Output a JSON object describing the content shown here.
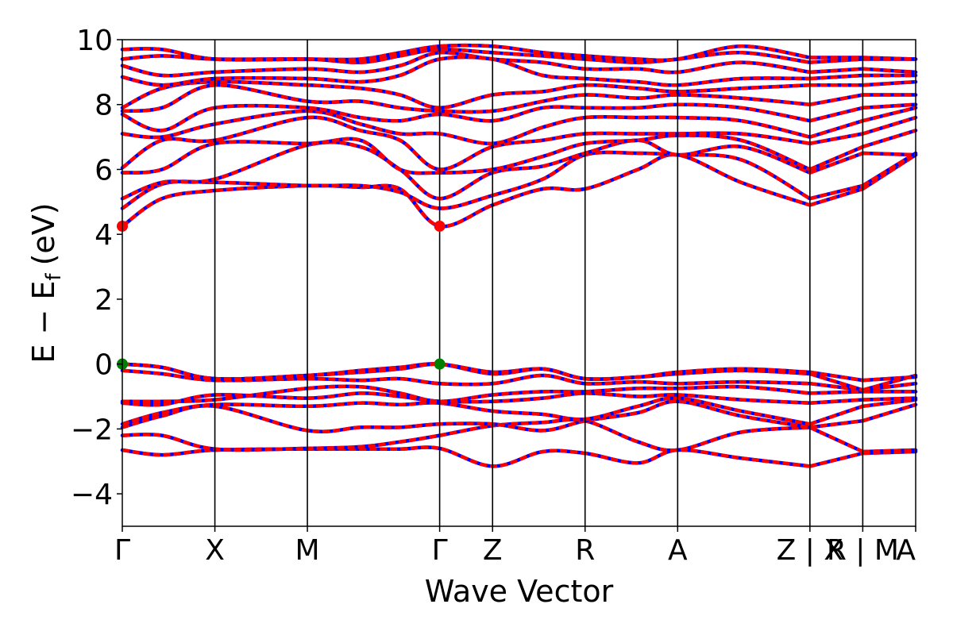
{
  "chart_data": {
    "type": "line",
    "title": "",
    "xlabel": "Wave Vector",
    "ylabel": "E − E",
    "ylabel_subscript": "f",
    "ylabel_unit": "(eV)",
    "ylim": [
      -5,
      10
    ],
    "yticks": [
      -4,
      -2,
      0,
      2,
      4,
      6,
      8,
      10
    ],
    "ytick_labels": [
      "−4",
      "−2",
      "0",
      "2",
      "4",
      "6",
      "8",
      "10"
    ],
    "x_range": [
      0,
      1
    ],
    "kpath_labels": [
      "Γ",
      "X",
      "M",
      "Γ",
      "Z",
      "R",
      "A",
      "Z | X",
      "R | M",
      "A"
    ],
    "kpath_positions": [
      0,
      0.1167,
      0.2333,
      0.4,
      0.4667,
      0.5833,
      0.7,
      0.8667,
      0.9333,
      1.0
    ],
    "segment_breaks": [
      0.8667,
      0.9333
    ],
    "grid": false,
    "legend": "none",
    "colors": {
      "band": "#ff0000",
      "band_overlay": "#0000ff",
      "vbm": "#008000",
      "cbm": "#ff0000"
    },
    "markers": [
      {
        "name": "VBM",
        "x": 0,
        "y": 0
      },
      {
        "name": "VBM",
        "x": 0.4,
        "y": 0
      },
      {
        "name": "CBM",
        "x": 0,
        "y": 4.25
      },
      {
        "name": "CBM",
        "x": 0.4,
        "y": 4.25
      }
    ],
    "series": [
      {
        "x": [
          0,
          0.05,
          0.1167,
          0.2333,
          0.3,
          0.35,
          0.4,
          0.4667,
          0.53,
          0.5833,
          0.65,
          0.7,
          0.78,
          0.8667,
          0.9333,
          1.0
        ],
        "y": [
          -2.65,
          -2.8,
          -2.65,
          -2.62,
          -2.62,
          -2.62,
          -2.6,
          -3.15,
          -2.7,
          -2.75,
          -3.05,
          -2.65,
          -2.9,
          -3.15,
          -2.75,
          -2.7
        ]
      },
      {
        "x": [
          0,
          0.05,
          0.1167,
          0.2333,
          0.3,
          0.35,
          0.4,
          0.4667,
          0.53,
          0.5833,
          0.65,
          0.7,
          0.78,
          0.8667,
          0.9333,
          1.0
        ],
        "y": [
          -2.2,
          -2.2,
          -2.62,
          -2.6,
          -2.55,
          -2.4,
          -2.2,
          -1.9,
          -1.8,
          -1.75,
          -2.4,
          -2.65,
          -2.1,
          -1.95,
          -2.7,
          -2.65
        ]
      },
      {
        "x": [
          0,
          0.05,
          0.1167,
          0.2333,
          0.3,
          0.35,
          0.4,
          0.4667,
          0.53,
          0.5833,
          0.65,
          0.7,
          0.78,
          0.8667,
          0.9333,
          1.0
        ],
        "y": [
          -1.95,
          -1.6,
          -1.3,
          -2.05,
          -1.95,
          -1.95,
          -1.85,
          -1.85,
          -2.05,
          -1.75,
          -1.5,
          -1.15,
          -1.6,
          -1.95,
          -1.75,
          -1.25
        ]
      },
      {
        "x": [
          0,
          0.05,
          0.1167,
          0.2333,
          0.3,
          0.35,
          0.4,
          0.4667,
          0.53,
          0.5833,
          0.65,
          0.7,
          0.78,
          0.8667,
          0.9333,
          1.0
        ],
        "y": [
          -1.85,
          -1.5,
          -1.25,
          -1.3,
          -1.2,
          -1.25,
          -1.2,
          -1.45,
          -1.55,
          -1.7,
          -1.3,
          -1.05,
          -1.45,
          -1.85,
          -1.3,
          -1.1
        ]
      },
      {
        "x": [
          0,
          0.05,
          0.1167,
          0.2333,
          0.3,
          0.35,
          0.4,
          0.4667,
          0.53,
          0.5833,
          0.65,
          0.7,
          0.78,
          0.8667,
          0.9333,
          1.0
        ],
        "y": [
          -1.2,
          -1.25,
          -0.95,
          -1.05,
          -0.9,
          -1.0,
          -1.15,
          -1.15,
          -1.05,
          -0.9,
          -1.0,
          -0.95,
          -1.1,
          -1.2,
          -1.1,
          -1.05
        ]
      },
      {
        "x": [
          0,
          0.05,
          0.1167,
          0.2333,
          0.3,
          0.35,
          0.4,
          0.4667,
          0.53,
          0.5833,
          0.65,
          0.7,
          0.78,
          0.8667,
          0.9333,
          1.0
        ],
        "y": [
          -1.15,
          -1.15,
          -1.1,
          -0.75,
          -0.7,
          -0.9,
          -1.15,
          -0.95,
          -0.85,
          -0.85,
          -0.75,
          -0.75,
          -0.7,
          -0.9,
          -0.85,
          -0.85
        ]
      },
      {
        "x": [
          0,
          0.05,
          0.1167,
          0.2333,
          0.3,
          0.35,
          0.4,
          0.4667,
          0.53,
          0.5833,
          0.65,
          0.7,
          0.78,
          0.8667,
          0.9333,
          1.0
        ],
        "y": [
          -0.2,
          -0.3,
          -0.5,
          -0.45,
          -0.5,
          -0.45,
          -0.6,
          -0.6,
          -0.35,
          -0.6,
          -0.55,
          -0.6,
          -0.55,
          -0.6,
          -0.8,
          -0.6
        ]
      },
      {
        "x": [
          0,
          0.05,
          0.1167,
          0.2333,
          0.3,
          0.35,
          0.4,
          0.4667,
          0.53,
          0.5833,
          0.65,
          0.7,
          0.78,
          0.8667,
          0.9333,
          1.0
        ],
        "y": [
          0,
          -0.1,
          -0.45,
          -0.35,
          -0.2,
          -0.1,
          0,
          -0.3,
          -0.15,
          -0.45,
          -0.4,
          -0.3,
          -0.2,
          -0.3,
          -0.8,
          -0.35
        ]
      },
      {
        "x": [
          0,
          0.05,
          0.1167,
          0.2333,
          0.3,
          0.35,
          0.4,
          0.4667,
          0.53,
          0.5833,
          0.65,
          0.7,
          0.78,
          0.8667,
          0.9333,
          1.0
        ],
        "y": [
          0,
          -0.1,
          -0.45,
          -0.35,
          -0.25,
          -0.15,
          0,
          -0.25,
          -0.15,
          -0.45,
          -0.4,
          -0.25,
          -0.15,
          -0.25,
          -0.5,
          -0.4
        ]
      },
      {
        "x": [
          0,
          0.05,
          0.1167,
          0.2333,
          0.3,
          0.35,
          0.4,
          0.4667,
          0.53,
          0.5833,
          0.65,
          0.7,
          0.78,
          0.8667,
          0.9333,
          1.0
        ],
        "y": [
          4.25,
          5.1,
          5.35,
          5.5,
          5.45,
          5.4,
          4.25,
          4.9,
          5.4,
          5.4,
          6.0,
          6.45,
          5.6,
          4.9,
          5.4,
          6.45
        ]
      },
      {
        "x": [
          0,
          0.05,
          0.1167,
          0.2333,
          0.3,
          0.35,
          0.4,
          0.4667,
          0.53,
          0.5833,
          0.65,
          0.7,
          0.78,
          0.8667,
          0.9333,
          1.0
        ],
        "y": [
          4.8,
          5.55,
          5.6,
          5.5,
          5.5,
          5.3,
          4.8,
          5.2,
          5.7,
          6.45,
          6.5,
          6.45,
          6.3,
          5.1,
          5.5,
          6.5
        ]
      },
      {
        "x": [
          0,
          0.05,
          0.1167,
          0.2333,
          0.3,
          0.35,
          0.4,
          0.4667,
          0.53,
          0.5833,
          0.65,
          0.7,
          0.78,
          0.8667,
          0.9333,
          1.0
        ],
        "y": [
          5.1,
          5.6,
          5.7,
          6.75,
          6.7,
          6.0,
          5.1,
          5.9,
          6.1,
          6.5,
          6.9,
          6.45,
          6.7,
          5.9,
          6.5,
          6.45
        ]
      },
      {
        "x": [
          0,
          0.05,
          0.1167,
          0.2333,
          0.3,
          0.35,
          0.4,
          0.4667,
          0.53,
          0.5833,
          0.65,
          0.7,
          0.78,
          0.8667,
          0.9333,
          1.0
        ],
        "y": [
          5.9,
          6.0,
          6.8,
          6.8,
          6.9,
          6.0,
          5.9,
          6.0,
          6.4,
          6.8,
          6.9,
          7.05,
          6.9,
          6.0,
          6.7,
          7.2
        ]
      },
      {
        "x": [
          0,
          0.05,
          0.1167,
          0.2333,
          0.3,
          0.35,
          0.4,
          0.4667,
          0.53,
          0.5833,
          0.65,
          0.7,
          0.78,
          0.8667,
          0.9333,
          1.0
        ],
        "y": [
          6.05,
          6.9,
          6.9,
          7.6,
          7.2,
          6.9,
          6.0,
          6.7,
          6.9,
          7.1,
          7.1,
          7.1,
          7.1,
          6.8,
          7.1,
          7.6
        ]
      },
      {
        "x": [
          0,
          0.05,
          0.1167,
          0.2333,
          0.3,
          0.35,
          0.4,
          0.4667,
          0.53,
          0.5833,
          0.65,
          0.7,
          0.78,
          0.8667,
          0.9333,
          1.0
        ],
        "y": [
          7.1,
          7.0,
          7.4,
          7.8,
          7.4,
          7.1,
          7.1,
          6.8,
          7.3,
          7.6,
          7.6,
          7.6,
          7.5,
          7.0,
          7.5,
          7.9
        ]
      },
      {
        "x": [
          0,
          0.05,
          0.1167,
          0.2333,
          0.3,
          0.35,
          0.4,
          0.4667,
          0.53,
          0.5833,
          0.65,
          0.7,
          0.78,
          0.8667,
          0.9333,
          1.0
        ],
        "y": [
          7.7,
          7.2,
          7.9,
          7.9,
          7.6,
          7.5,
          7.7,
          7.5,
          7.9,
          7.9,
          7.9,
          8.0,
          7.9,
          7.5,
          7.9,
          8.0
        ]
      },
      {
        "x": [
          0,
          0.05,
          0.1167,
          0.2333,
          0.3,
          0.35,
          0.4,
          0.4667,
          0.53,
          0.5833,
          0.65,
          0.7,
          0.78,
          0.8667,
          0.9333,
          1.0
        ],
        "y": [
          7.8,
          7.9,
          8.6,
          8.1,
          8.1,
          7.9,
          7.8,
          7.8,
          8.1,
          8.3,
          8.2,
          8.3,
          8.2,
          8.0,
          8.3,
          8.3
        ]
      },
      {
        "x": [
          0,
          0.05,
          0.1167,
          0.2333,
          0.3,
          0.35,
          0.4,
          0.4667,
          0.53,
          0.5833,
          0.65,
          0.7,
          0.78,
          0.8667,
          0.9333,
          1.0
        ],
        "y": [
          7.9,
          8.5,
          8.7,
          8.6,
          8.5,
          8.3,
          7.9,
          8.3,
          8.4,
          8.6,
          8.5,
          8.4,
          8.5,
          8.6,
          8.6,
          8.7
        ]
      },
      {
        "x": [
          0,
          0.05,
          0.1167,
          0.2333,
          0.3,
          0.35,
          0.4,
          0.4667,
          0.53,
          0.5833,
          0.65,
          0.7,
          0.78,
          0.8667,
          0.9333,
          1.0
        ],
        "y": [
          8.85,
          8.6,
          8.8,
          8.8,
          8.7,
          8.9,
          9.4,
          9.4,
          8.9,
          8.8,
          8.7,
          8.6,
          8.8,
          8.8,
          8.9,
          8.9
        ]
      },
      {
        "x": [
          0,
          0.05,
          0.1167,
          0.2333,
          0.3,
          0.35,
          0.4,
          0.4667,
          0.53,
          0.5833,
          0.65,
          0.7,
          0.78,
          0.8667,
          0.9333,
          1.0
        ],
        "y": [
          9.2,
          8.9,
          9.0,
          9.1,
          9.0,
          9.2,
          9.6,
          9.4,
          9.3,
          9.1,
          9.1,
          9.0,
          9.3,
          9.0,
          9.1,
          9.0
        ]
      },
      {
        "x": [
          0,
          0.05,
          0.1167,
          0.2333,
          0.3,
          0.35,
          0.4,
          0.4667,
          0.53,
          0.5833,
          0.65,
          0.7,
          0.78,
          0.8667,
          0.9333,
          1.0
        ],
        "y": [
          9.4,
          9.5,
          9.4,
          9.4,
          9.3,
          9.5,
          9.7,
          9.6,
          9.5,
          9.4,
          9.3,
          9.4,
          9.6,
          9.3,
          9.4,
          9.4
        ]
      },
      {
        "x": [
          0,
          0.05,
          0.1167,
          0.2333,
          0.3,
          0.35,
          0.4,
          0.4667,
          0.53,
          0.5833,
          0.65,
          0.7,
          0.78,
          0.8667,
          0.9333,
          1.0
        ],
        "y": [
          9.7,
          9.7,
          9.4,
          9.4,
          9.4,
          9.6,
          9.8,
          9.8,
          9.6,
          9.5,
          9.4,
          9.4,
          9.8,
          9.45,
          9.45,
          9.4
        ]
      }
    ]
  }
}
